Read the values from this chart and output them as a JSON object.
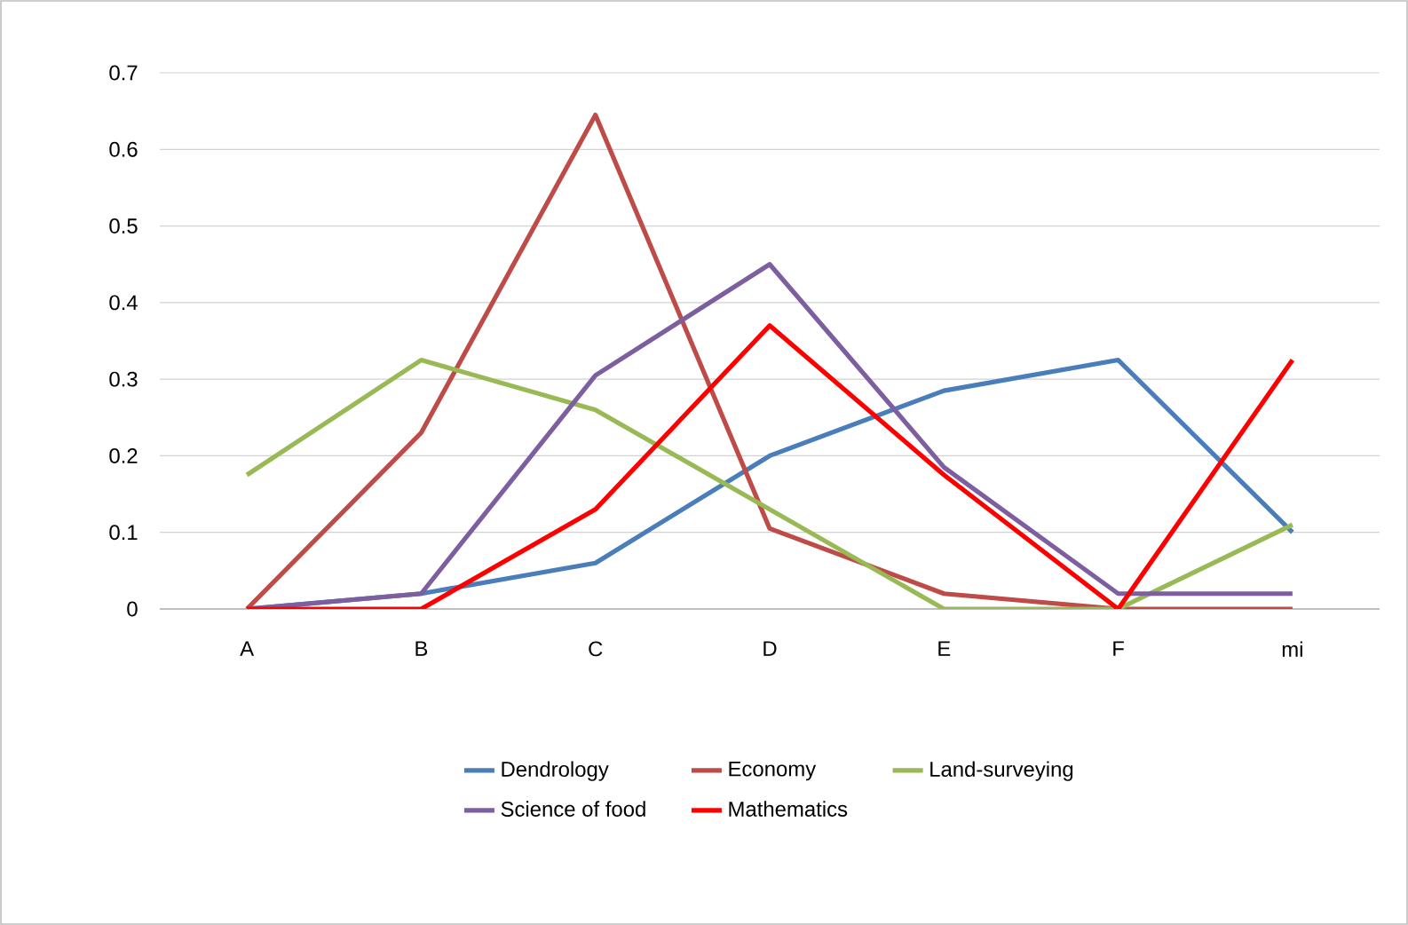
{
  "chart_data": {
    "type": "line",
    "categories": [
      "A",
      "B",
      "C",
      "D",
      "E",
      "F",
      "mi"
    ],
    "series": [
      {
        "name": "Dendrology",
        "color": "#4a7ebb",
        "values": [
          0,
          0.02,
          0.06,
          0.2,
          0.285,
          0.325,
          0.1
        ]
      },
      {
        "name": "Economy",
        "color": "#be4b48",
        "values": [
          0,
          0.23,
          0.645,
          0.105,
          0.02,
          0,
          0
        ]
      },
      {
        "name": "Land-surveying",
        "color": "#98b954",
        "values": [
          0.175,
          0.325,
          0.26,
          0.13,
          0,
          0,
          0.11
        ]
      },
      {
        "name": "Science of food",
        "color": "#7d5fa0",
        "values": [
          0,
          0.02,
          0.305,
          0.45,
          0.185,
          0.02,
          0.02
        ]
      },
      {
        "name": "Mathematics",
        "color": "#ff0000",
        "values": [
          0,
          0,
          0.13,
          0.37,
          0.175,
          0,
          0.325
        ]
      }
    ],
    "ylim": [
      0,
      0.7
    ],
    "yticks": [
      0,
      0.1,
      0.2,
      0.3,
      0.4,
      0.5,
      0.6,
      0.7
    ],
    "grid": "y",
    "legend": "bottom",
    "marker": "none",
    "line_style": "solid"
  }
}
